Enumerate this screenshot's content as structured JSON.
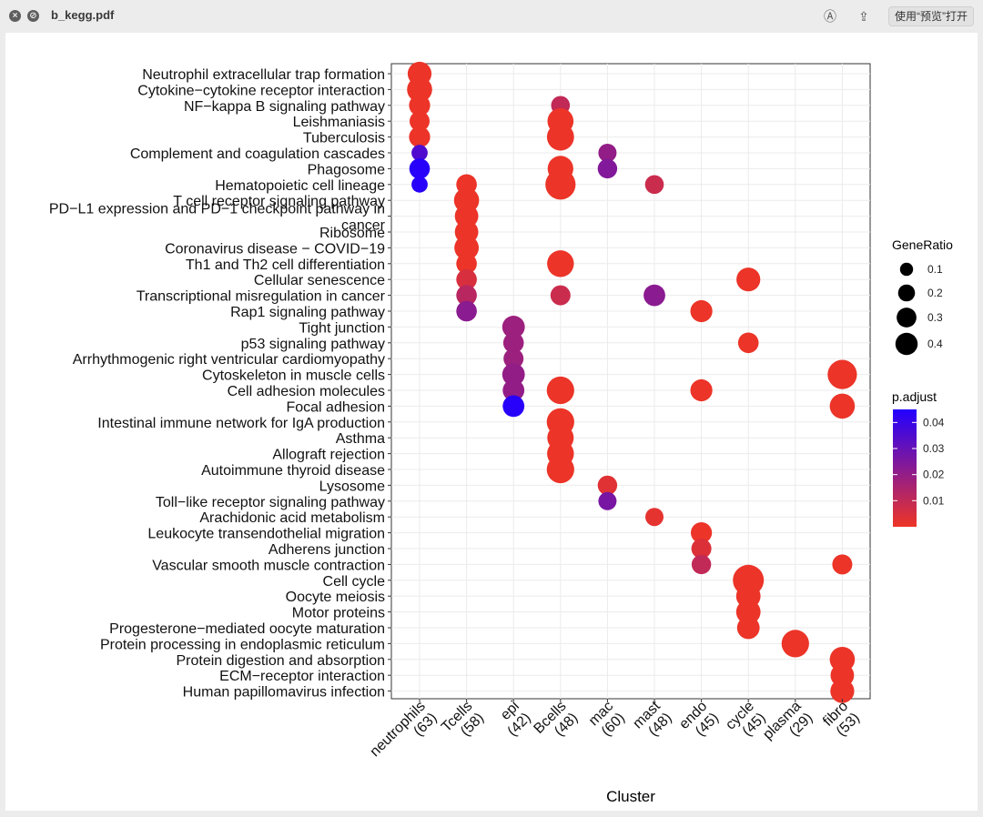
{
  "window": {
    "title": "b_kegg.pdf",
    "close_icon": "close-icon",
    "minimize_icon": "minimize-icon",
    "markup_icon": "markup-pen-icon",
    "share_icon": "share-icon",
    "open_with_label": "使用“预览”打开"
  },
  "chart_data": {
    "type": "scatter",
    "xlabel": "Cluster",
    "ylabel": "",
    "grid": true,
    "categories": [
      "neutrophils\n(63)",
      "Tcells\n(58)",
      "epi\n(42)",
      "Bcells\n(48)",
      "mac\n(60)",
      "mast\n(48)",
      "endo\n(45)",
      "cycle\n(45)",
      "plasma\n(29)",
      "fibro\n(53)"
    ],
    "terms": [
      "Neutrophil extracellular trap formation",
      "Cytokine−cytokine receptor interaction",
      "NF−kappa B signaling pathway",
      "Leishmaniasis",
      "Tuberculosis",
      "Complement and coagulation cascades",
      "Phagosome",
      "Hematopoietic cell lineage",
      "T cell receptor signaling pathway",
      "PD−L1 expression and PD−1 checkpoint pathway in\ncancer",
      "Ribosome",
      "Coronavirus disease − COVID−19",
      "Th1 and Th2 cell differentiation",
      "Cellular senescence",
      "Transcriptional misregulation in cancer",
      "Rap1 signaling pathway",
      "Tight junction",
      "p53 signaling pathway",
      "Arrhythmogenic right ventricular cardiomyopathy",
      "Cytoskeleton in muscle cells",
      "Cell adhesion molecules",
      "Focal adhesion",
      "Intestinal immune network for IgA production",
      "Asthma",
      "Allograft rejection",
      "Autoimmune thyroid disease",
      "Lysosome",
      "Toll−like receptor signaling pathway",
      "Arachidonic acid metabolism",
      "Leukocyte transendothelial migration",
      "Adherens junction",
      "Vascular smooth muscle contraction",
      "Cell cycle",
      "Oocyte meiosis",
      "Motor proteins",
      "Progesterone−mediated oocyte maturation",
      "Protein processing in endoplasmic reticulum",
      "Protein digestion and absorption",
      "ECM−receptor interaction",
      "Human papillomavirus infection"
    ],
    "points": [
      {
        "term": 0,
        "cluster": 0,
        "gene_ratio": 0.21,
        "p_adjust": 0.0005
      },
      {
        "term": 1,
        "cluster": 0,
        "gene_ratio": 0.24,
        "p_adjust": 0.0005
      },
      {
        "term": 2,
        "cluster": 0,
        "gene_ratio": 0.15,
        "p_adjust": 0.0005
      },
      {
        "term": 3,
        "cluster": 0,
        "gene_ratio": 0.13,
        "p_adjust": 0.0005
      },
      {
        "term": 4,
        "cluster": 0,
        "gene_ratio": 0.15,
        "p_adjust": 0.0005
      },
      {
        "term": 5,
        "cluster": 0,
        "gene_ratio": 0.07,
        "p_adjust": 0.035
      },
      {
        "term": 6,
        "cluster": 0,
        "gene_ratio": 0.14,
        "p_adjust": 0.044
      },
      {
        "term": 7,
        "cluster": 0,
        "gene_ratio": 0.07,
        "p_adjust": 0.044
      },
      {
        "term": 7,
        "cluster": 1,
        "gene_ratio": 0.14,
        "p_adjust": 0.0005
      },
      {
        "term": 8,
        "cluster": 1,
        "gene_ratio": 0.24,
        "p_adjust": 0.0005
      },
      {
        "term": 9,
        "cluster": 1,
        "gene_ratio": 0.2,
        "p_adjust": 0.0005
      },
      {
        "term": 10,
        "cluster": 1,
        "gene_ratio": 0.2,
        "p_adjust": 0.0005
      },
      {
        "term": 11,
        "cluster": 1,
        "gene_ratio": 0.22,
        "p_adjust": 0.0005
      },
      {
        "term": 12,
        "cluster": 1,
        "gene_ratio": 0.14,
        "p_adjust": 0.0005
      },
      {
        "term": 13,
        "cluster": 1,
        "gene_ratio": 0.14,
        "p_adjust": 0.005
      },
      {
        "term": 14,
        "cluster": 1,
        "gene_ratio": 0.14,
        "p_adjust": 0.012
      },
      {
        "term": 15,
        "cluster": 1,
        "gene_ratio": 0.14,
        "p_adjust": 0.022
      },
      {
        "term": 16,
        "cluster": 2,
        "gene_ratio": 0.18,
        "p_adjust": 0.018
      },
      {
        "term": 17,
        "cluster": 2,
        "gene_ratio": 0.14,
        "p_adjust": 0.018
      },
      {
        "term": 18,
        "cluster": 2,
        "gene_ratio": 0.13,
        "p_adjust": 0.018
      },
      {
        "term": 19,
        "cluster": 2,
        "gene_ratio": 0.18,
        "p_adjust": 0.02
      },
      {
        "term": 20,
        "cluster": 2,
        "gene_ratio": 0.16,
        "p_adjust": 0.02
      },
      {
        "term": 21,
        "cluster": 2,
        "gene_ratio": 0.16,
        "p_adjust": 0.044
      },
      {
        "term": 2,
        "cluster": 3,
        "gene_ratio": 0.11,
        "p_adjust": 0.01
      },
      {
        "term": 3,
        "cluster": 3,
        "gene_ratio": 0.26,
        "p_adjust": 0.0005
      },
      {
        "term": 4,
        "cluster": 3,
        "gene_ratio": 0.29,
        "p_adjust": 0.0005
      },
      {
        "term": 6,
        "cluster": 3,
        "gene_ratio": 0.25,
        "p_adjust": 0.0005
      },
      {
        "term": 7,
        "cluster": 3,
        "gene_ratio": 0.38,
        "p_adjust": 0.0005
      },
      {
        "term": 12,
        "cluster": 3,
        "gene_ratio": 0.28,
        "p_adjust": 0.0005
      },
      {
        "term": 14,
        "cluster": 3,
        "gene_ratio": 0.13,
        "p_adjust": 0.008
      },
      {
        "term": 20,
        "cluster": 3,
        "gene_ratio": 0.3,
        "p_adjust": 0.0005
      },
      {
        "term": 22,
        "cluster": 3,
        "gene_ratio": 0.3,
        "p_adjust": 0.0005
      },
      {
        "term": 23,
        "cluster": 3,
        "gene_ratio": 0.27,
        "p_adjust": 0.0005
      },
      {
        "term": 24,
        "cluster": 3,
        "gene_ratio": 0.28,
        "p_adjust": 0.0005
      },
      {
        "term": 25,
        "cluster": 3,
        "gene_ratio": 0.3,
        "p_adjust": 0.0005
      },
      {
        "term": 5,
        "cluster": 4,
        "gene_ratio": 0.1,
        "p_adjust": 0.02
      },
      {
        "term": 6,
        "cluster": 4,
        "gene_ratio": 0.12,
        "p_adjust": 0.024
      },
      {
        "term": 26,
        "cluster": 4,
        "gene_ratio": 0.12,
        "p_adjust": 0.003
      },
      {
        "term": 27,
        "cluster": 4,
        "gene_ratio": 0.1,
        "p_adjust": 0.026
      },
      {
        "term": 7,
        "cluster": 5,
        "gene_ratio": 0.11,
        "p_adjust": 0.008
      },
      {
        "term": 14,
        "cluster": 5,
        "gene_ratio": 0.16,
        "p_adjust": 0.022
      },
      {
        "term": 28,
        "cluster": 5,
        "gene_ratio": 0.1,
        "p_adjust": 0.002
      },
      {
        "term": 15,
        "cluster": 6,
        "gene_ratio": 0.17,
        "p_adjust": 0.0005
      },
      {
        "term": 20,
        "cluster": 6,
        "gene_ratio": 0.17,
        "p_adjust": 0.0005
      },
      {
        "term": 29,
        "cluster": 6,
        "gene_ratio": 0.15,
        "p_adjust": 0.0005
      },
      {
        "term": 30,
        "cluster": 6,
        "gene_ratio": 0.13,
        "p_adjust": 0.004
      },
      {
        "term": 31,
        "cluster": 6,
        "gene_ratio": 0.12,
        "p_adjust": 0.01
      },
      {
        "term": 13,
        "cluster": 7,
        "gene_ratio": 0.21,
        "p_adjust": 0.0005
      },
      {
        "term": 17,
        "cluster": 7,
        "gene_ratio": 0.14,
        "p_adjust": 0.0005
      },
      {
        "term": 32,
        "cluster": 7,
        "gene_ratio": 0.4,
        "p_adjust": 0.0005
      },
      {
        "term": 33,
        "cluster": 7,
        "gene_ratio": 0.22,
        "p_adjust": 0.0005
      },
      {
        "term": 34,
        "cluster": 7,
        "gene_ratio": 0.22,
        "p_adjust": 0.0005
      },
      {
        "term": 35,
        "cluster": 7,
        "gene_ratio": 0.18,
        "p_adjust": 0.0005
      },
      {
        "term": 36,
        "cluster": 8,
        "gene_ratio": 0.3,
        "p_adjust": 0.0005
      },
      {
        "term": 19,
        "cluster": 9,
        "gene_ratio": 0.35,
        "p_adjust": 0.0005
      },
      {
        "term": 21,
        "cluster": 9,
        "gene_ratio": 0.24,
        "p_adjust": 0.0005
      },
      {
        "term": 31,
        "cluster": 9,
        "gene_ratio": 0.13,
        "p_adjust": 0.0005
      },
      {
        "term": 37,
        "cluster": 9,
        "gene_ratio": 0.24,
        "p_adjust": 0.0005
      },
      {
        "term": 38,
        "cluster": 9,
        "gene_ratio": 0.2,
        "p_adjust": 0.0005
      },
      {
        "term": 39,
        "cluster": 9,
        "gene_ratio": 0.21,
        "p_adjust": 0.0005
      }
    ],
    "size_legend": {
      "title": "GeneRatio",
      "values": [
        0.1,
        0.2,
        0.3,
        0.4
      ],
      "labels": [
        "0.1",
        "0.2",
        "0.3",
        "0.4"
      ]
    },
    "color_legend": {
      "title": "p.adjust",
      "range": [
        0.0,
        0.045
      ],
      "ticks": [
        0.01,
        0.02,
        0.03,
        0.04
      ],
      "tick_labels": [
        "0.01",
        "0.02",
        "0.03",
        "0.04"
      ],
      "low_color": "#ee3526",
      "high_color": "#2200ff"
    }
  }
}
